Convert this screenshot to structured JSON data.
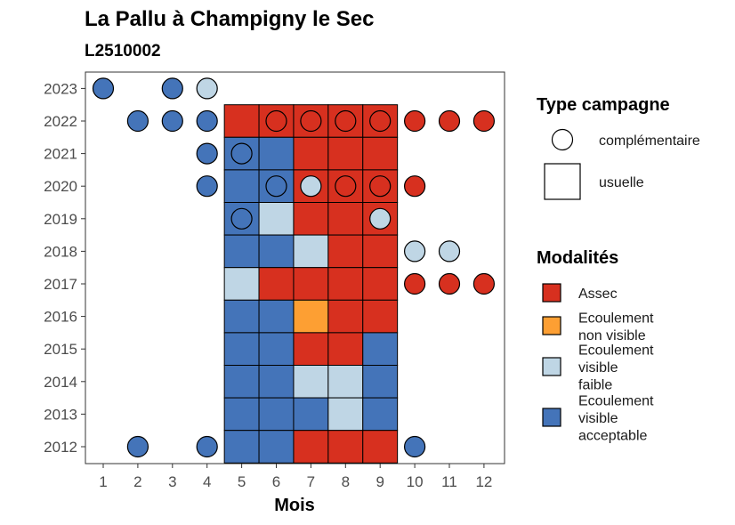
{
  "chart_data": {
    "type": "heatmap",
    "title": "La Pallu à Champigny le Sec",
    "subtitle": "L2510002",
    "xlabel": "Mois",
    "ylabel": "",
    "x_ticks": [
      "1",
      "2",
      "3",
      "4",
      "5",
      "6",
      "7",
      "8",
      "9",
      "10",
      "11",
      "12"
    ],
    "y_ticks": [
      "2012",
      "2013",
      "2014",
      "2015",
      "2016",
      "2017",
      "2018",
      "2019",
      "2020",
      "2021",
      "2022",
      "2023"
    ],
    "xlim": [
      0.5,
      12.5
    ],
    "ylim": [
      2011.5,
      2023.5
    ],
    "grid": false,
    "legend_placement": "right",
    "colors": {
      "Assec": "#d7301f",
      "Ecoulement non visible": "#fd9f33",
      "Ecoulement visible faible": "#bfd6e5",
      "Ecoulement visible acceptable": "#4474b9"
    },
    "legend_campagne": {
      "title": "Type campagne",
      "entries": [
        {
          "label": "complémentaire",
          "shape": "circle"
        },
        {
          "label": "usuelle",
          "shape": "square"
        }
      ]
    },
    "legend_modalites": {
      "title": "Modalités",
      "entries": [
        {
          "key": "Assec",
          "lines": [
            "Assec"
          ]
        },
        {
          "key": "Ecoulement non visible",
          "lines": [
            "Ecoulement",
            "non visible"
          ]
        },
        {
          "key": "Ecoulement visible faible",
          "lines": [
            "Ecoulement",
            "visible",
            "faible"
          ]
        },
        {
          "key": "Ecoulement visible acceptable",
          "lines": [
            "Ecoulement",
            "visible",
            "acceptable"
          ]
        }
      ]
    },
    "usuelle": [
      {
        "year": 2022,
        "months": [
          "Assec",
          "Assec",
          "Assec",
          "Assec",
          "Assec"
        ]
      },
      {
        "year": 2021,
        "months": [
          "Ecoulement visible acceptable",
          "Ecoulement visible acceptable",
          "Assec",
          "Assec",
          "Assec"
        ]
      },
      {
        "year": 2020,
        "months": [
          "Ecoulement visible acceptable",
          "Ecoulement visible acceptable",
          "Assec",
          "Assec",
          "Assec"
        ]
      },
      {
        "year": 2019,
        "months": [
          "Ecoulement visible acceptable",
          "Ecoulement visible faible",
          "Assec",
          "Assec",
          "Assec"
        ]
      },
      {
        "year": 2018,
        "months": [
          "Ecoulement visible acceptable",
          "Ecoulement visible acceptable",
          "Ecoulement visible faible",
          "Assec",
          "Assec"
        ]
      },
      {
        "year": 2017,
        "months": [
          "Ecoulement visible faible",
          "Assec",
          "Assec",
          "Assec",
          "Assec"
        ]
      },
      {
        "year": 2016,
        "months": [
          "Ecoulement visible acceptable",
          "Ecoulement visible acceptable",
          "Ecoulement non visible",
          "Assec",
          "Assec"
        ]
      },
      {
        "year": 2015,
        "months": [
          "Ecoulement visible acceptable",
          "Ecoulement visible acceptable",
          "Assec",
          "Assec",
          "Ecoulement visible acceptable"
        ]
      },
      {
        "year": 2014,
        "months": [
          "Ecoulement visible acceptable",
          "Ecoulement visible acceptable",
          "Ecoulement visible faible",
          "Ecoulement visible faible",
          "Ecoulement visible acceptable"
        ]
      },
      {
        "year": 2013,
        "months": [
          "Ecoulement visible acceptable",
          "Ecoulement visible acceptable",
          "Ecoulement visible acceptable",
          "Ecoulement visible faible",
          "Ecoulement visible acceptable"
        ]
      },
      {
        "year": 2012,
        "months": [
          "Ecoulement visible acceptable",
          "Ecoulement visible acceptable",
          "Assec",
          "Assec",
          "Assec"
        ]
      }
    ],
    "usuelle_start_month": 5,
    "complementaire": [
      {
        "month": 1,
        "year": 2023,
        "value": "Ecoulement visible acceptable"
      },
      {
        "month": 3,
        "year": 2023,
        "value": "Ecoulement visible acceptable"
      },
      {
        "month": 4,
        "year": 2023,
        "value": "Ecoulement visible faible"
      },
      {
        "month": 2,
        "year": 2022,
        "value": "Ecoulement visible acceptable"
      },
      {
        "month": 3,
        "year": 2022,
        "value": "Ecoulement visible acceptable"
      },
      {
        "month": 4,
        "year": 2022,
        "value": "Ecoulement visible acceptable"
      },
      {
        "month": 6,
        "year": 2022,
        "value": "Assec"
      },
      {
        "month": 7,
        "year": 2022,
        "value": "Assec"
      },
      {
        "month": 8,
        "year": 2022,
        "value": "Assec"
      },
      {
        "month": 9,
        "year": 2022,
        "value": "Assec"
      },
      {
        "month": 10,
        "year": 2022,
        "value": "Assec"
      },
      {
        "month": 11,
        "year": 2022,
        "value": "Assec"
      },
      {
        "month": 12,
        "year": 2022,
        "value": "Assec"
      },
      {
        "month": 4,
        "year": 2021,
        "value": "Ecoulement visible acceptable"
      },
      {
        "month": 5,
        "year": 2021,
        "value": "Ecoulement visible acceptable"
      },
      {
        "month": 4,
        "year": 2020,
        "value": "Ecoulement visible acceptable"
      },
      {
        "month": 6,
        "year": 2020,
        "value": "Ecoulement visible acceptable"
      },
      {
        "month": 7,
        "year": 2020,
        "value": "Ecoulement visible faible"
      },
      {
        "month": 8,
        "year": 2020,
        "value": "Assec"
      },
      {
        "month": 9,
        "year": 2020,
        "value": "Assec"
      },
      {
        "month": 10,
        "year": 2020,
        "value": "Assec"
      },
      {
        "month": 5,
        "year": 2019,
        "value": "Ecoulement visible acceptable"
      },
      {
        "month": 9,
        "year": 2019,
        "value": "Ecoulement visible faible"
      },
      {
        "month": 10,
        "year": 2018,
        "value": "Ecoulement visible faible"
      },
      {
        "month": 11,
        "year": 2018,
        "value": "Ecoulement visible faible"
      },
      {
        "month": 10,
        "year": 2017,
        "value": "Assec"
      },
      {
        "month": 11,
        "year": 2017,
        "value": "Assec"
      },
      {
        "month": 12,
        "year": 2017,
        "value": "Assec"
      },
      {
        "month": 2,
        "year": 2012,
        "value": "Ecoulement visible acceptable"
      },
      {
        "month": 4,
        "year": 2012,
        "value": "Ecoulement visible acceptable"
      },
      {
        "month": 10,
        "year": 2012,
        "value": "Ecoulement visible acceptable"
      }
    ]
  }
}
